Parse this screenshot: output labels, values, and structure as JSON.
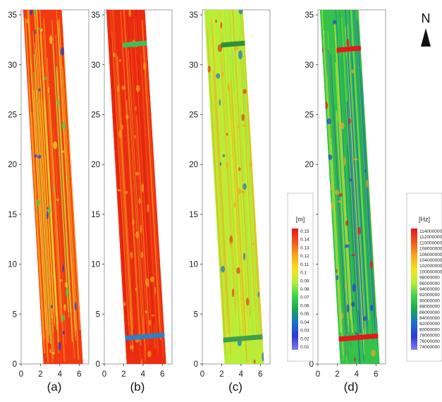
{
  "chart_data": [
    {
      "type": "heatmap",
      "panel": "(a)",
      "x_ticks": [
        "0",
        "2",
        "4",
        "6"
      ],
      "y_ticks": [
        "0",
        "5",
        "10",
        "15",
        "20",
        "25",
        "30",
        "35"
      ],
      "xlim": [
        0,
        7
      ],
      "ylim": [
        0,
        35.5
      ],
      "strip": {
        "bottom": [
          2.3,
          6.4
        ],
        "top": [
          0.2,
          4.2
        ]
      },
      "pattern": "red background with yellow/green linear features, blue spots along east side",
      "background_color": "#f23a12"
    },
    {
      "type": "heatmap",
      "panel": "(b)",
      "x_ticks": [
        "0",
        "2",
        "4",
        "6"
      ],
      "y_ticks": [
        "0",
        "5",
        "10",
        "15",
        "20",
        "25",
        "30",
        "35"
      ],
      "xlim": [
        0,
        7
      ],
      "ylim": [
        0,
        35.5
      ],
      "strip": {
        "bottom": [
          2.3,
          6.4
        ],
        "top": [
          0.2,
          4.2
        ]
      },
      "pattern": "red background with green bands at y≈32 and y≈2.5",
      "background_color": "#ec2c10"
    },
    {
      "type": "heatmap",
      "panel": "(c)",
      "x_ticks": [
        "0",
        "2",
        "4",
        "6"
      ],
      "y_ticks": [
        "0",
        "5",
        "10",
        "15",
        "20",
        "25",
        "30",
        "35"
      ],
      "xlim": [
        0,
        7
      ],
      "ylim": [
        0,
        35.5
      ],
      "strip": {
        "bottom": [
          2.3,
          6.4
        ],
        "top": [
          0.2,
          4.2
        ]
      },
      "pattern": "yellow-green background with dark green bands at y≈32 and y≈2.5",
      "background_color": "#b8ee38",
      "colorbar": {
        "unit": "[m]",
        "labels": [
          "0.15",
          "0.14",
          "0.13",
          "0.12",
          "0.11",
          "0.1",
          "0.09",
          "0.08",
          "0.07",
          "0.06",
          "0.05",
          "0.04",
          "0.03",
          "0.02",
          "0.01"
        ]
      }
    },
    {
      "type": "heatmap",
      "panel": "(d)",
      "x_ticks": [
        "0",
        "2",
        "4",
        "6"
      ],
      "y_ticks": [
        "0",
        "5",
        "10",
        "15",
        "20",
        "25",
        "30",
        "35"
      ],
      "xlim": [
        0,
        7
      ],
      "ylim": [
        0,
        35.5
      ],
      "strip": {
        "bottom": [
          2.3,
          6.4
        ],
        "top": [
          0.2,
          4.2
        ]
      },
      "pattern": "green/blue background with red bands at y≈31.5 and y≈2.5",
      "background_color": "#34c24a",
      "colorbar": {
        "unit": "[Hz]",
        "labels": [
          "114000000",
          "112000000",
          "110000000",
          "108000000",
          "106000000",
          "104000000",
          "102000000",
          "100000000",
          "98000000",
          "96000000",
          "94000000",
          "92000000",
          "90000000",
          "88000000",
          "86000000",
          "84000000",
          "82000000",
          "80000000",
          "78000000",
          "76000000",
          "74000000"
        ]
      }
    }
  ],
  "north_label": "N",
  "colorbar_gradient": [
    "#e21a1a",
    "#f2561a",
    "#f7a61e",
    "#f5e11e",
    "#b8ee38",
    "#3fd34e",
    "#1aa64f",
    "#1a6fd2",
    "#2a3ad8",
    "#7f7ff0"
  ]
}
